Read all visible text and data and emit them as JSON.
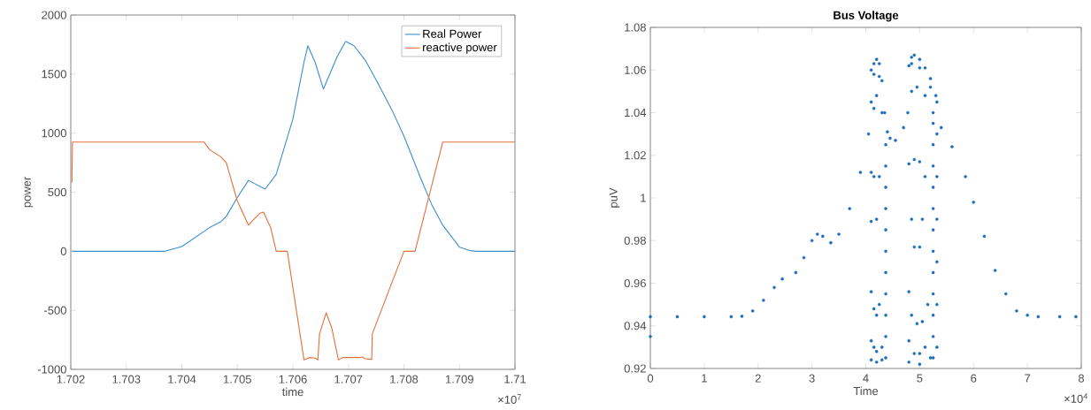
{
  "chart_data": [
    {
      "type": "line",
      "xlabel": "time",
      "ylabel": "power",
      "legend": "top right",
      "x": [
        1.70202,
        1.70203,
        1.7037,
        1.704,
        1.7045,
        1.7047,
        1.7048,
        1.705,
        1.7052,
        1.7055,
        1.7057,
        1.706,
        1.7062,
        1.70627,
        1.7064,
        1.70655,
        1.7068,
        1.70695,
        1.7071,
        1.7073,
        1.7075,
        1.7078,
        1.708,
        1.7083,
        1.7085,
        1.7087,
        1.709,
        1.7092,
        1.7093,
        1.71
      ],
      "series": [
        {
          "name": "Real Power",
          "color": "#3b8ed0",
          "values": [
            0,
            0,
            0,
            40,
            200,
            250,
            295,
            455,
            600,
            526,
            650,
            1120,
            1600,
            1740,
            1600,
            1373,
            1650,
            1777,
            1740,
            1620,
            1450,
            1180,
            975,
            620,
            396,
            220,
            35,
            5,
            0,
            0
          ]
        },
        {
          "name": "reactive power",
          "color": "#e2703a",
          "x": [
            1.70202,
            1.70203,
            1.7044,
            1.7045,
            1.7047,
            1.7048,
            1.705,
            1.7052,
            1.7054,
            1.70547,
            1.7056,
            1.7057,
            1.7059,
            1.7062,
            1.7063,
            1.7064,
            1.70645,
            1.70648,
            1.7066,
            1.7067,
            1.70682,
            1.7069,
            1.7072,
            1.70725,
            1.7073,
            1.70742,
            1.70743,
            1.708,
            1.7082,
            1.7087,
            1.71
          ],
          "values": [
            580,
            925,
            925,
            860,
            800,
            750,
            425,
            222,
            320,
            332,
            200,
            0,
            0,
            -920,
            -900,
            -905,
            -920,
            -700,
            -520,
            -650,
            -920,
            -900,
            -900,
            -895,
            -910,
            -915,
            -700,
            0,
            0,
            925,
            925
          ]
        }
      ],
      "xlim": [
        1.702,
        1.71
      ],
      "ylim": [
        -1000,
        2000
      ],
      "xticks": [
        1.702,
        1.703,
        1.704,
        1.705,
        1.706,
        1.707,
        1.708,
        1.709,
        1.71
      ],
      "yticks": [
        -1000,
        -500,
        0,
        500,
        1000,
        1500,
        2000
      ],
      "annotations": [
        "×10$^{7}$"
      ]
    },
    {
      "type": "scatter",
      "title": "Bus Voltage",
      "xlabel": "Time",
      "ylabel": "puV",
      "color": "#1f6fb8",
      "x": [
        0,
        0,
        0.5,
        1,
        1.5,
        1.7,
        1.9,
        2.1,
        2.3,
        2.45,
        2.7,
        2.85,
        3.0,
        3.1,
        3.2,
        3.35,
        3.5,
        3.7,
        3.9,
        4.05,
        4.15,
        4.45,
        4.55,
        4.7,
        4.78,
        5.4,
        5.6,
        5.85,
        6.0,
        6.2,
        6.4,
        6.6,
        6.8,
        7.0,
        7.2,
        7.6,
        7.9,
        4.1,
        4.15,
        4.2,
        4.25,
        4.3,
        4.35,
        4.4,
        4.1,
        4.2,
        4.3,
        4.15,
        4.25,
        4.1,
        4.15,
        4.2,
        4.25,
        4.1,
        4.1,
        4.15,
        4.2,
        4.25,
        4.1,
        4.15,
        4.2,
        4.3,
        4.1,
        4.2,
        4.3,
        4.37,
        4.37,
        4.37,
        4.37,
        4.37,
        4.37,
        4.37,
        4.37,
        4.37,
        4.37,
        4.37,
        4.8,
        4.85,
        4.9,
        5.0,
        5.1,
        5.2,
        5.3,
        4.85,
        5.0,
        5.2,
        4.85,
        4.95,
        5.1,
        5.25,
        4.8,
        4.9,
        5.0,
        5.1,
        5.05,
        5.0,
        4.9,
        4.85,
        4.8,
        4.85,
        4.95,
        5.05,
        5.15,
        4.8,
        4.9,
        5.0,
        5.1,
        4.8,
        5.0,
        5.2,
        5.25,
        5.25,
        5.25,
        5.25,
        5.25,
        5.25,
        5.25,
        5.25,
        5.25,
        5.25,
        5.25,
        5.25,
        5.32,
        5.32,
        5.32,
        5.32,
        5.32,
        5.32,
        5.32
      ],
      "values": [
        0.935,
        0.9443,
        0.9443,
        0.9443,
        0.9443,
        0.9445,
        0.947,
        0.952,
        0.958,
        0.962,
        0.965,
        0.972,
        0.98,
        0.983,
        0.982,
        0.979,
        0.983,
        0.995,
        1.012,
        1.03,
        1.042,
        1.028,
        1.027,
        1.033,
        1.04,
        1.033,
        1.024,
        1.01,
        0.998,
        0.982,
        0.966,
        0.955,
        0.947,
        0.945,
        0.9443,
        0.9443,
        0.9443,
        1.06,
        1.063,
        1.065,
        1.063,
        1.055,
        1.04,
        1.031,
        1.045,
        1.048,
        1.04,
        1.058,
        1.057,
        1.012,
        1.01,
        0.99,
        1.01,
        0.989,
        0.956,
        0.948,
        0.945,
        0.95,
        0.933,
        0.93,
        0.928,
        0.93,
        0.924,
        0.923,
        0.924,
        0.925,
        0.935,
        0.945,
        0.955,
        0.965,
        0.975,
        0.985,
        0.995,
        1.005,
        1.015,
        1.025,
        1.062,
        1.066,
        1.067,
        1.065,
        1.061,
        1.056,
        1.048,
        1.063,
        1.061,
        1.052,
        1.05,
        1.052,
        1.048,
        1.04,
        1.016,
        1.018,
        1.017,
        1.01,
        0.99,
        0.977,
        0.977,
        0.99,
        0.956,
        0.945,
        0.941,
        0.942,
        0.95,
        0.933,
        0.927,
        0.927,
        0.93,
        0.923,
        0.922,
        0.925,
        0.925,
        0.935,
        0.945,
        0.955,
        0.965,
        0.975,
        0.985,
        0.995,
        1.005,
        1.015,
        1.025,
        1.035,
        0.93,
        0.95,
        0.97,
        0.99,
        1.01,
        1.03,
        1.045
      ],
      "xlim": [
        0,
        8
      ],
      "ylim": [
        0.92,
        1.08
      ],
      "xticks": [
        0,
        1,
        2,
        3,
        4,
        5,
        6,
        7,
        8
      ],
      "yticks": [
        0.92,
        0.94,
        0.96,
        0.98,
        1,
        1.02,
        1.04,
        1.06,
        1.08
      ],
      "annotations": [
        "×10$^{4}$"
      ]
    }
  ]
}
